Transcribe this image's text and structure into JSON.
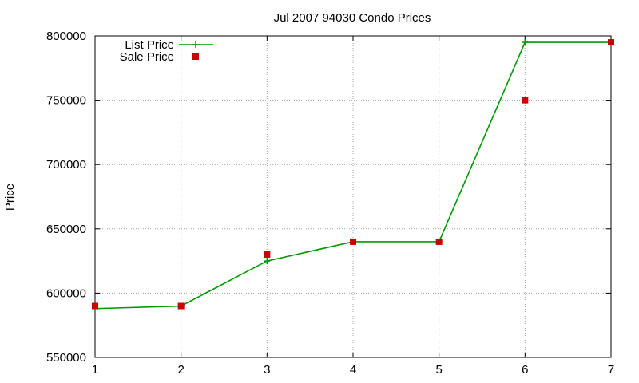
{
  "chart_data": {
    "type": "line",
    "title": "Jul 2007 94030 Condo Prices",
    "xlabel": "",
    "ylabel": "Price",
    "x": [
      1,
      2,
      3,
      4,
      5,
      6,
      7
    ],
    "xlim": [
      1,
      7
    ],
    "ylim": [
      550000,
      800000
    ],
    "xticks": [
      "1",
      "2",
      "3",
      "4",
      "5",
      "6",
      "7"
    ],
    "yticks": [
      "550000",
      "600000",
      "650000",
      "700000",
      "750000",
      "800000"
    ],
    "grid": true,
    "legend_position": "top-left",
    "series": [
      {
        "name": "List Price",
        "style": "line-with-plus-markers",
        "color": "#009900",
        "values": [
          588000,
          590000,
          625000,
          640000,
          640000,
          795000,
          795000
        ]
      },
      {
        "name": "Sale Price",
        "style": "square-markers",
        "color": "#cc0000",
        "values": [
          590000,
          590000,
          630000,
          640000,
          640000,
          750000,
          795000
        ]
      }
    ]
  }
}
